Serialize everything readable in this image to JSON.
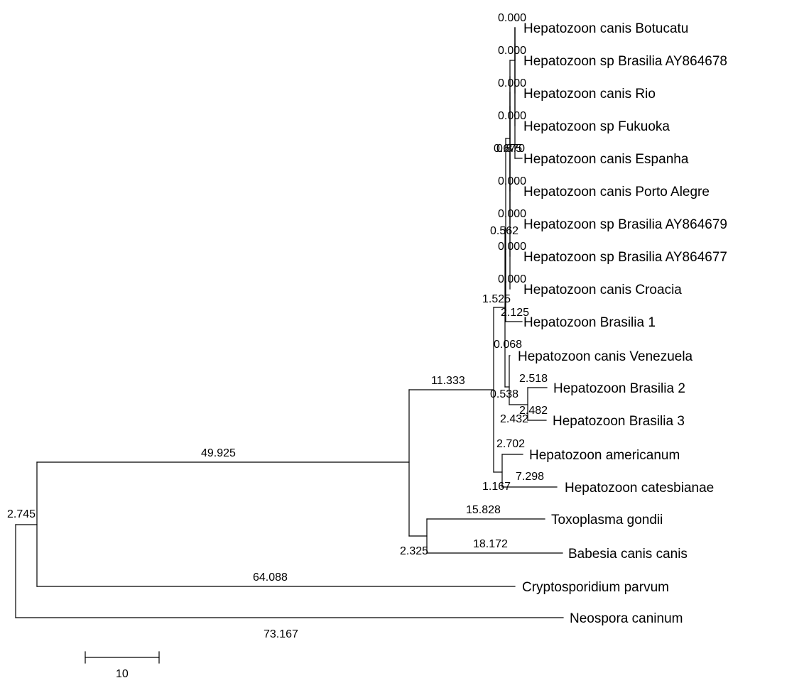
{
  "taxa": [
    "Hepatozoon canis Botucatu",
    "Hepatozoon sp Brasilia AY864678",
    "Hepatozoon canis Rio",
    "Hepatozoon sp Fukuoka",
    "Hepatozoon canis Espanha",
    "Hepatozoon canis Porto Alegre",
    "Hepatozoon sp Brasilia AY864679",
    "Hepatozoon sp Brasilia AY864677",
    "Hepatozoon canis Croacia",
    "Hepatozoon Brasilia 1",
    "Hepatozoon canis Venezuela",
    "Hepatozoon Brasilia 2",
    "Hepatozoon Brasilia 3",
    "Hepatozoon americanum",
    "Hepatozoon catesbianae",
    "Toxoplasma gondii",
    "Babesia canis canis",
    "Cryptosporidium parvum",
    "Neospora caninum"
  ],
  "branch_lengths": {
    "root_to_outer": "2.745",
    "outer_to_main": "49.925",
    "main_to_hep": "11.333",
    "main_to_toxbab": "2.325",
    "toxoplasma": "15.828",
    "babesia": "18.172",
    "cryptosporidium": "64.088",
    "neospora": "73.167",
    "hep_to_h1": "1.525",
    "hep_to_amcat": "1.167",
    "americanum": "2.702",
    "catesbianae": "7.298",
    "h1_to_h2": "0.068",
    "h1_to_ven23": "0.538",
    "venezuela": "0.068",
    "ven23_to_b23": "2.432",
    "brasilia2": "2.518",
    "brasilia3": "2.482",
    "h2_to_brasilia1": "2.125",
    "h2_to_h3": "0.562",
    "h3_to_croacia": "0.000",
    "h3_to_h4": "0.000",
    "h4_to_ay864677": "0.000",
    "h4_to_h5": "0.000",
    "h5_to_ay864679": "0.000",
    "h5_to_h6": "0.000",
    "h6_to_portoalegre": "0.000",
    "h6_to_h7": "0.675",
    "h7_to_espanha": "0.870",
    "h7_to_h8": "0.000",
    "h8_to_fukuoka": "0.000",
    "h8_to_h9": "0.000",
    "h9_to_rio": "0.000",
    "h9_to_h10": "0.000",
    "botucatu": "0.000",
    "ay864678": "0.000"
  },
  "scale_bar": {
    "value": 10,
    "label": "10"
  }
}
